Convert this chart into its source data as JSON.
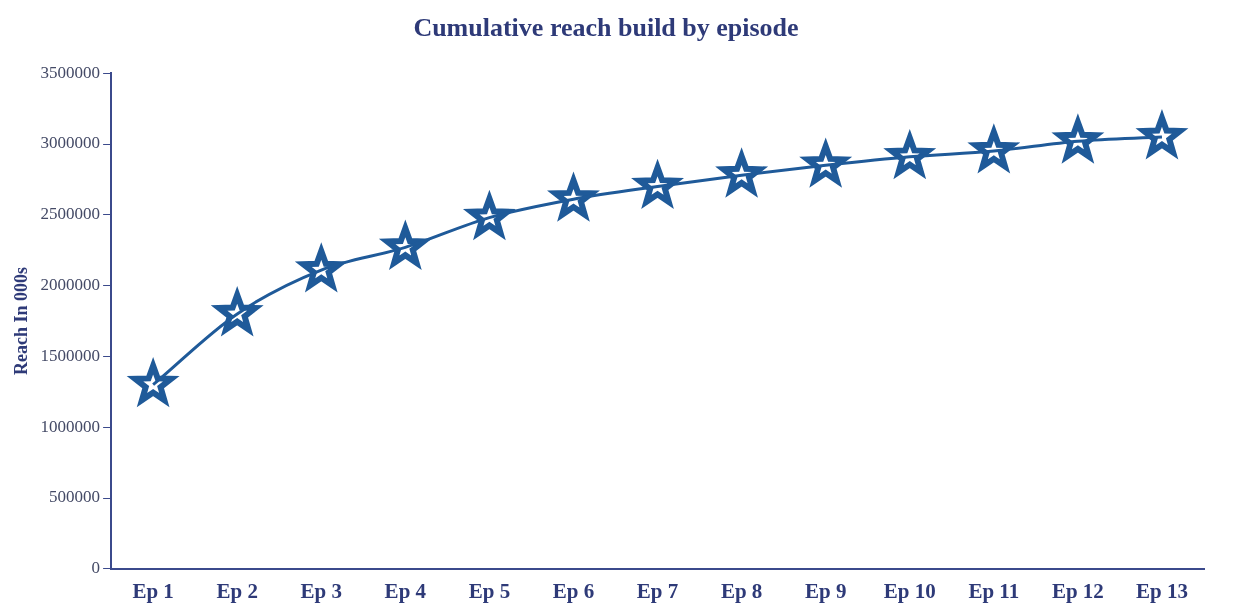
{
  "chart_data": {
    "type": "line",
    "title": "Cumulative reach build by episode",
    "ylabel": "Reach In 000s",
    "categories": [
      "Ep 1",
      "Ep 2",
      "Ep 3",
      "Ep 4",
      "Ep 5",
      "Ep 6",
      "Ep 7",
      "Ep 8",
      "Ep 9",
      "Ep 10",
      "Ep 11",
      "Ep 12",
      "Ep 13"
    ],
    "series": [
      {
        "color": "#1f5a99",
        "values": [
          1300000,
          1800000,
          2110000,
          2270000,
          2480000,
          2610000,
          2700000,
          2780000,
          2850000,
          2910000,
          2950000,
          3020000,
          3050000
        ]
      }
    ],
    "ylim": [
      0,
      3500000
    ],
    "yticks": [
      0,
      500000,
      1000000,
      1500000,
      2000000,
      2500000,
      3000000,
      3500000
    ],
    "grid": false,
    "legend": false,
    "marker": "star",
    "line_style": "solid"
  }
}
